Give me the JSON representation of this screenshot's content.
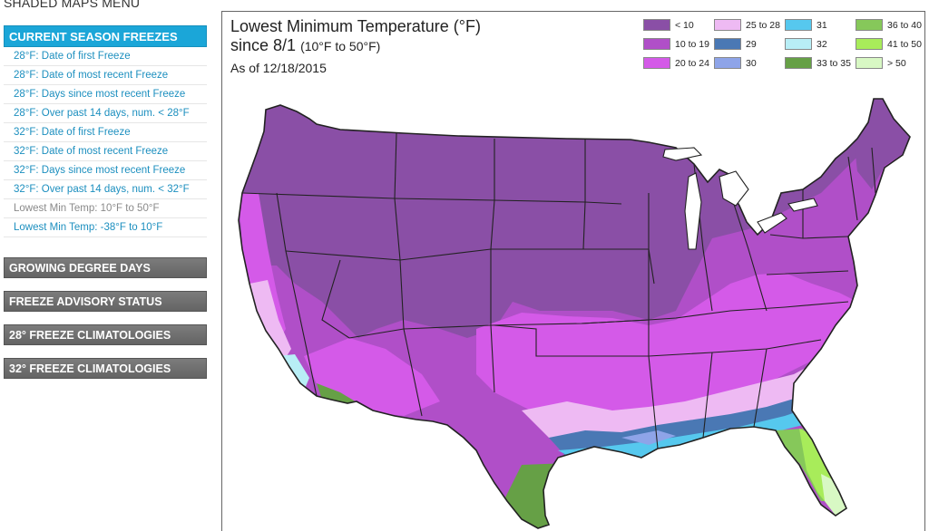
{
  "menu_title": "SHADED MAPS MENU",
  "sidebar": {
    "header": "CURRENT SEASON FREEZES",
    "links": [
      {
        "label": "28°F: Date of first Freeze"
      },
      {
        "label": "28°F: Date of most recent Freeze"
      },
      {
        "label": "28°F: Days since most recent Freeze"
      },
      {
        "label": "28°F: Over past 14 days, num. < 28°F"
      },
      {
        "label": "32°F: Date of first Freeze"
      },
      {
        "label": "32°F: Date of most recent Freeze"
      },
      {
        "label": "32°F: Days since most recent Freeze"
      },
      {
        "label": "32°F: Over past 14 days, num. < 32°F"
      },
      {
        "label": "Lowest Min Temp: 10°F to 50°F",
        "current": true
      },
      {
        "label": "Lowest Min Temp: -38°F to 10°F"
      }
    ],
    "sections": [
      {
        "label": "GROWING DEGREE DAYS"
      },
      {
        "label": "FREEZE ADVISORY STATUS"
      },
      {
        "label": "28° FREEZE CLIMATOLOGIES"
      },
      {
        "label": "32° FREEZE CLIMATOLOGIES"
      }
    ]
  },
  "map": {
    "title": "Lowest Minimum Temperature (°F)",
    "subtitle_since": "since 8/1",
    "subtitle_range": "(10°F to 50°F)",
    "as_of": "As of 12/18/2015"
  },
  "legend": [
    {
      "label": "< 10",
      "color": "#8a4fa6"
    },
    {
      "label": "10 to 19",
      "color": "#b04fc8"
    },
    {
      "label": "20 to 24",
      "color": "#d45ae8"
    },
    {
      "label": "25 to 28",
      "color": "#eebaf3"
    },
    {
      "label": "29",
      "color": "#4a78b4"
    },
    {
      "label": "30",
      "color": "#8ea4e8"
    },
    {
      "label": "31",
      "color": "#56c8ee"
    },
    {
      "label": "32",
      "color": "#b8eef6"
    },
    {
      "label": "33 to 35",
      "color": "#66a046"
    },
    {
      "label": "36 to 40",
      "color": "#86c85a"
    },
    {
      "label": "41 to 50",
      "color": "#a8ec5a"
    },
    {
      "label": "> 50",
      "color": "#d8f8c4"
    }
  ]
}
